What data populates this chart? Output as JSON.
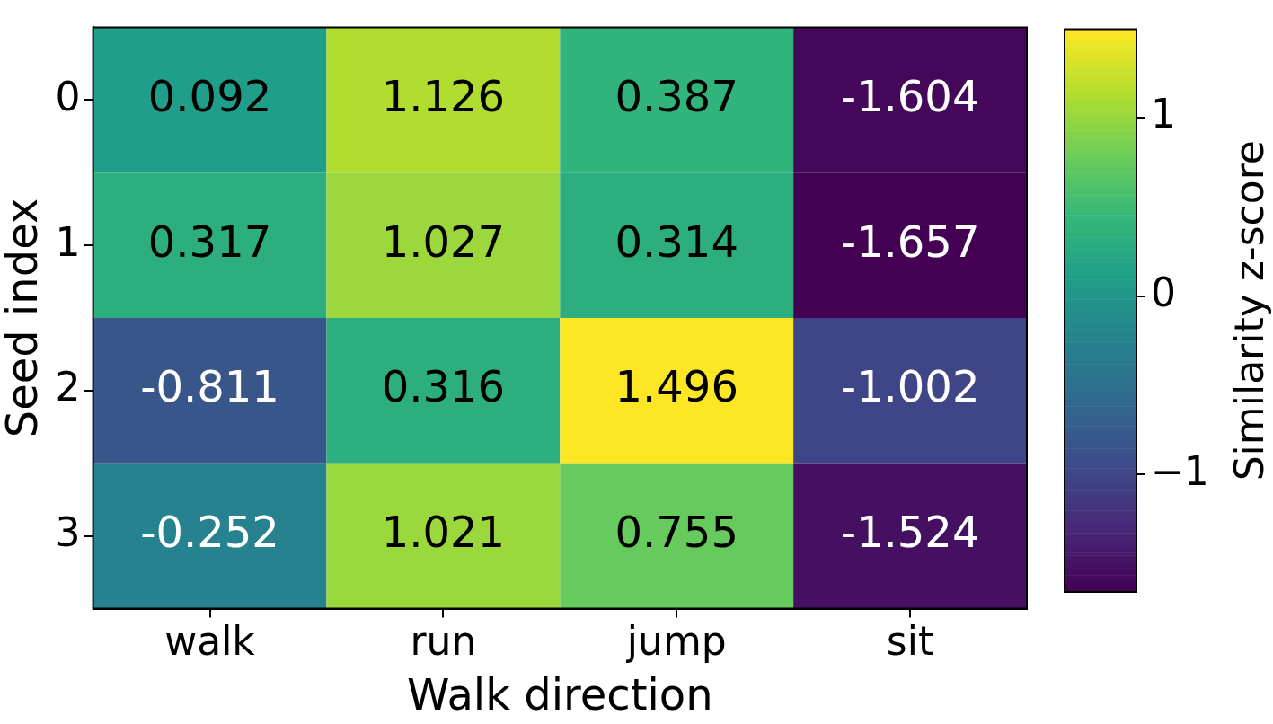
{
  "chart_data": {
    "type": "heatmap",
    "xlabel": "Walk direction",
    "ylabel": "Seed index",
    "clabel": "Similarity z-score",
    "categories": [
      "walk",
      "run",
      "jump",
      "sit"
    ],
    "y_categories": [
      "0",
      "1",
      "2",
      "3"
    ],
    "cells": [
      [
        0.092,
        1.126,
        0.387,
        -1.604
      ],
      [
        0.317,
        1.027,
        0.314,
        -1.657
      ],
      [
        -0.811,
        0.316,
        1.496,
        -1.002
      ],
      [
        -0.252,
        1.021,
        0.755,
        -1.524
      ]
    ],
    "data_labels": true,
    "clim": [
      -1.657,
      1.496
    ],
    "cticks": [
      {
        "value": -1,
        "label": "−1"
      },
      0,
      1
    ]
  }
}
